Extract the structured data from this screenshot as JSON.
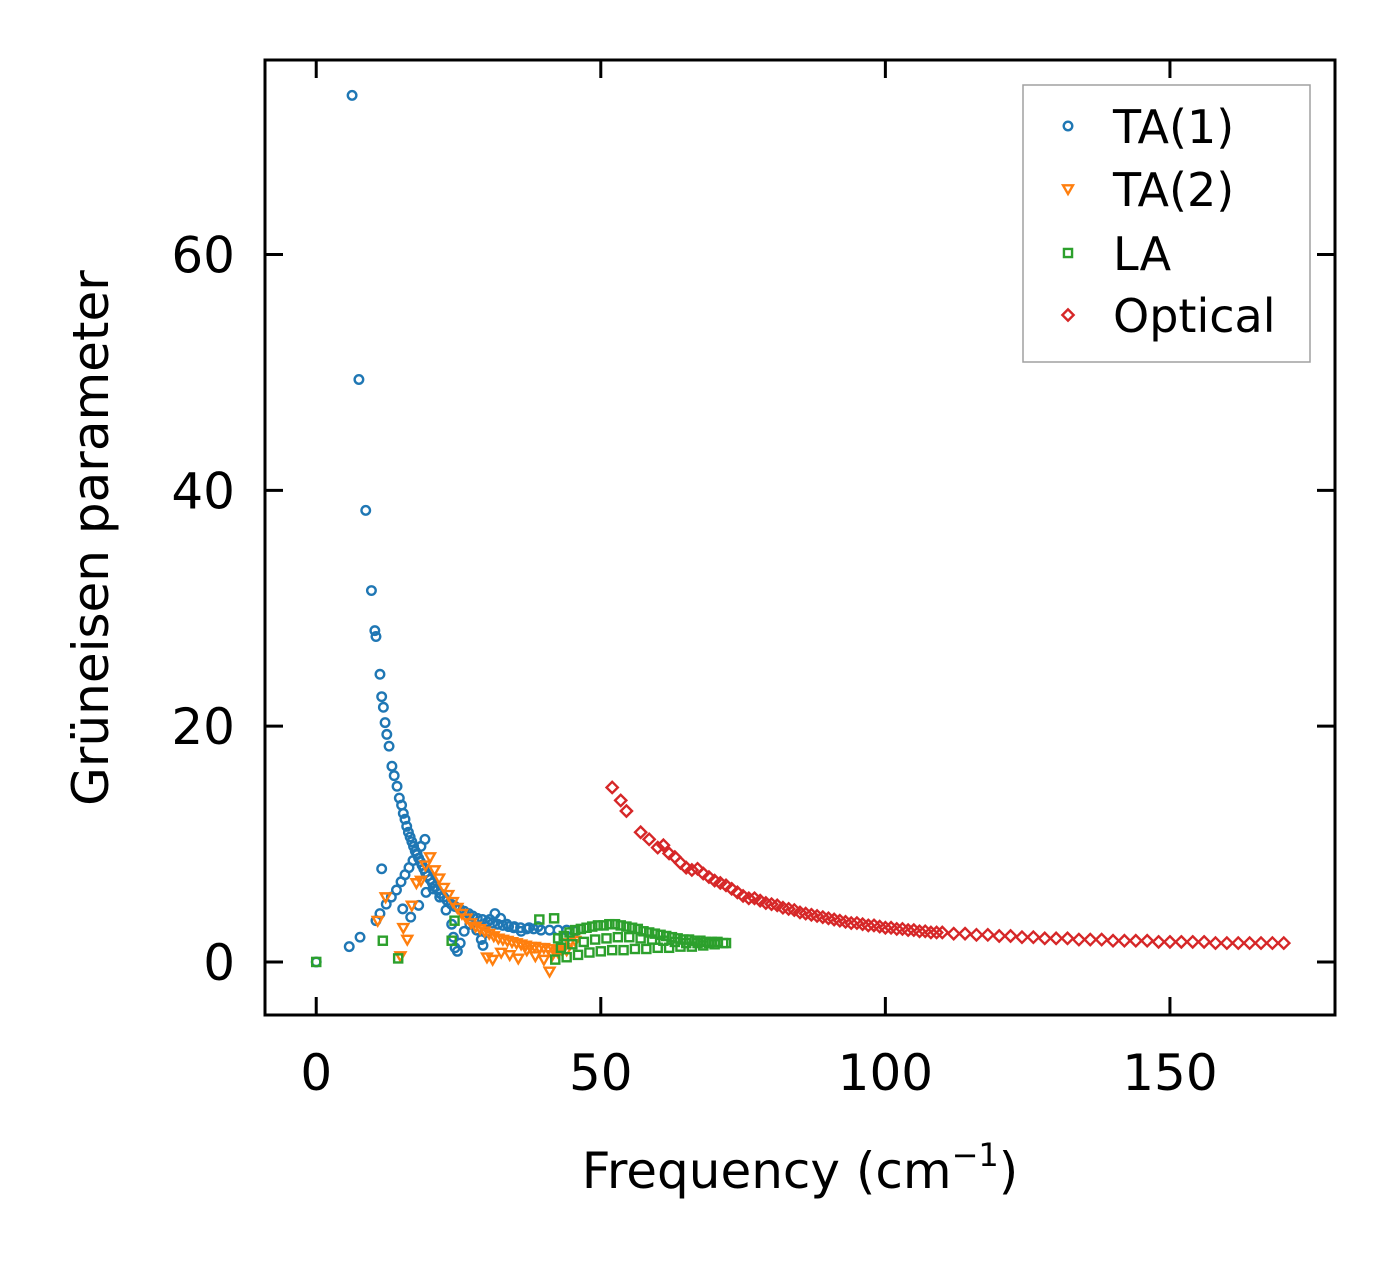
{
  "chart_data": {
    "type": "scatter",
    "title": "",
    "xlabel": "Frequency (cm",
    "xlabel_sup": "−1",
    "xlabel_close": ")",
    "ylabel": "Grüneisen parameter",
    "xlim": [
      -9,
      179
    ],
    "ylim": [
      -4.5,
      76.5
    ],
    "xticks": [
      0,
      50,
      100,
      150
    ],
    "yticks": [
      0,
      20,
      40,
      60
    ],
    "grid": false,
    "legend_position": "top-right",
    "series": [
      {
        "name": "TA(1)",
        "marker": "circle",
        "color": "#1f77b4",
        "x": [
          0,
          5.8,
          6.3,
          7.5,
          7.7,
          8.7,
          9.7,
          10.3,
          10.5,
          11.2,
          11.5,
          11.8,
          12.1,
          12.4,
          12.8,
          13.3,
          13.7,
          14.2,
          14.6,
          15.0,
          15.3,
          15.6,
          15.9,
          16.2,
          16.5,
          16.8,
          17.1,
          17.4,
          17.7,
          18.0,
          18.3,
          18.6,
          18.9,
          19.2,
          19.6,
          20.0,
          20.4,
          20.8,
          21.3,
          21.8,
          22.4,
          23.0,
          23.7,
          24.4,
          25.2,
          26.0,
          26.8,
          27.5,
          28.3,
          29.2,
          30.1,
          31.0,
          31.9,
          32.8,
          33.8,
          34.8,
          35.9,
          37.0,
          38.2,
          39.5,
          41.0,
          42.5,
          44.0,
          45.5,
          10.5,
          11.2,
          12.3,
          13.2,
          14.1,
          14.9,
          15.6,
          16.3,
          17.0,
          17.7,
          18.4,
          19.1,
          11.5,
          15.2,
          16.6,
          18.0,
          19.3,
          20.5,
          21.7,
          22.8,
          23.8,
          24.1,
          24.4,
          24.8,
          25.3,
          26.0,
          27.0,
          28.2,
          29.0,
          29.3,
          29.8,
          30.5,
          31.4,
          32.4,
          33.5,
          34.7,
          36.0,
          37.4,
          39.0
        ],
        "y": [
          0,
          1.3,
          73.5,
          49.4,
          2.1,
          38.3,
          31.5,
          28.1,
          27.6,
          24.4,
          22.5,
          21.6,
          20.3,
          19.3,
          18.3,
          16.6,
          15.8,
          14.9,
          13.9,
          13.3,
          12.6,
          12.1,
          11.5,
          11.0,
          10.6,
          10.2,
          9.8,
          9.4,
          9.1,
          8.8,
          8.5,
          8.2,
          7.9,
          7.6,
          7.3,
          7.0,
          6.7,
          6.4,
          6.1,
          5.8,
          5.5,
          5.2,
          4.9,
          4.7,
          4.5,
          4.3,
          4.1,
          3.9,
          3.7,
          3.6,
          3.4,
          3.3,
          3.2,
          3.1,
          3.0,
          3.0,
          2.9,
          2.8,
          2.8,
          2.7,
          2.7,
          2.7,
          2.7,
          2.6,
          3.5,
          4.1,
          4.9,
          5.5,
          6.1,
          6.8,
          7.4,
          8.0,
          8.6,
          9.2,
          9.8,
          10.4,
          7.9,
          4.5,
          3.8,
          4.8,
          5.9,
          6.2,
          5.5,
          4.4,
          3.2,
          2.1,
          1.2,
          0.9,
          1.6,
          2.6,
          3.2,
          2.7,
          1.9,
          1.4,
          2.5,
          3.6,
          4.1,
          3.7,
          3.2,
          2.9,
          2.6,
          2.9,
          3.0
        ]
      },
      {
        "name": "TA(2)",
        "marker": "triangle-down",
        "color": "#ff7f0e",
        "x": [
          10.8,
          12.2,
          14.8,
          15.3,
          16.0,
          16.8,
          17.6,
          18.4,
          19.2,
          20.0,
          20.8,
          21.6,
          22.4,
          23.2,
          24.0,
          24.8,
          25.6,
          26.4,
          27.2,
          28.0,
          28.8,
          29.6,
          30.4,
          31.2,
          32.0,
          32.8,
          33.6,
          34.4,
          35.2,
          36.0,
          36.8,
          37.6,
          38.4,
          39.2,
          40.0,
          40.8,
          41.6,
          42.4,
          43.2,
          44.0,
          30.0,
          31.0,
          32.5,
          34.0,
          35.5,
          37.0,
          38.5,
          40.0,
          41.0,
          41.5,
          42.5,
          43.5,
          44.5,
          45.5
        ],
        "y": [
          3.5,
          5.5,
          0.5,
          2.9,
          1.9,
          4.8,
          6.7,
          6.9,
          8.2,
          8.9,
          7.8,
          7.1,
          6.3,
          5.7,
          5.1,
          4.6,
          4.1,
          3.7,
          3.3,
          3.0,
          2.8,
          2.6,
          2.4,
          2.2,
          2.0,
          1.9,
          1.8,
          1.7,
          1.6,
          1.5,
          1.4,
          1.3,
          1.3,
          1.2,
          1.2,
          1.1,
          1.1,
          1.0,
          1.0,
          1.0,
          0.4,
          0.2,
          0.8,
          0.6,
          0.3,
          1.0,
          0.5,
          0.2,
          -0.8,
          0.6,
          0.8,
          1.2,
          1.6,
          1.8
        ]
      },
      {
        "name": "LA",
        "marker": "square",
        "color": "#2ca02c",
        "x": [
          0,
          11.7,
          14.4,
          23.8,
          24.3,
          39.2,
          41.8,
          42.5,
          43.5,
          44.5,
          45.5,
          46.5,
          47.5,
          48.5,
          49.5,
          50.5,
          51.5,
          52.5,
          53.5,
          54.5,
          55.5,
          56.5,
          57.5,
          58.5,
          59.5,
          60.5,
          61.5,
          62.5,
          63.5,
          64.5,
          65.5,
          66.5,
          67.5,
          68.5,
          69.5,
          70.5,
          71.5,
          42.0,
          44.0,
          46.0,
          48.0,
          50.0,
          52.0,
          54.0,
          56.0,
          58.0,
          60.0,
          62.0,
          64.0,
          66.0,
          68.0,
          70.0,
          72.0,
          43.0,
          45.0,
          47.0,
          49.0,
          51.0,
          53.0,
          55.0,
          57.0,
          59.0,
          61.0,
          63.0,
          65.0,
          67.0,
          69.0
        ],
        "y": [
          0,
          1.8,
          0.3,
          1.8,
          3.5,
          3.6,
          3.7,
          2.0,
          2.2,
          2.5,
          2.7,
          2.8,
          2.9,
          3.0,
          3.1,
          3.1,
          3.2,
          3.2,
          3.1,
          3.0,
          2.9,
          2.8,
          2.6,
          2.5,
          2.4,
          2.3,
          2.2,
          2.1,
          2.0,
          1.9,
          1.9,
          1.8,
          1.8,
          1.7,
          1.7,
          1.7,
          1.6,
          0.2,
          0.4,
          0.6,
          0.8,
          0.9,
          1.0,
          1.0,
          1.1,
          1.1,
          1.2,
          1.2,
          1.3,
          1.3,
          1.4,
          1.5,
          1.6,
          1.2,
          1.5,
          1.7,
          1.9,
          2.0,
          2.1,
          2.1,
          2.0,
          1.9,
          1.8,
          1.7,
          1.6,
          1.6,
          1.6
        ]
      },
      {
        "name": "Optical",
        "marker": "diamond",
        "color": "#d62728",
        "x": [
          52,
          53.5,
          54.5,
          57,
          58.5,
          60,
          61,
          62,
          63,
          64,
          65,
          66,
          67,
          68,
          69,
          70,
          71,
          72,
          73,
          74,
          75,
          76,
          77,
          78,
          79,
          80,
          81,
          82,
          83,
          84,
          85,
          86,
          87,
          88,
          89,
          90,
          91,
          92,
          93,
          94,
          95,
          96,
          97,
          98,
          99,
          100,
          101,
          102,
          103,
          104,
          105,
          106,
          107,
          108,
          109,
          110,
          112,
          114,
          116,
          118,
          120,
          122,
          124,
          126,
          128,
          130,
          132,
          134,
          136,
          138,
          140,
          142,
          144,
          146,
          148,
          150,
          152,
          154,
          156,
          158,
          160,
          162,
          164,
          166,
          168,
          170
        ],
        "y": [
          14.8,
          13.7,
          12.8,
          11.0,
          10.4,
          9.7,
          9.9,
          9.2,
          8.9,
          8.4,
          8.0,
          7.8,
          7.9,
          7.5,
          7.2,
          6.9,
          6.7,
          6.5,
          6.2,
          5.9,
          5.6,
          5.4,
          5.4,
          5.2,
          5.0,
          4.9,
          4.8,
          4.6,
          4.5,
          4.4,
          4.2,
          4.1,
          4.0,
          3.9,
          3.8,
          3.7,
          3.6,
          3.5,
          3.4,
          3.3,
          3.3,
          3.2,
          3.1,
          3.1,
          3.0,
          2.9,
          2.9,
          2.8,
          2.8,
          2.7,
          2.7,
          2.6,
          2.6,
          2.5,
          2.5,
          2.5,
          2.4,
          2.4,
          2.3,
          2.3,
          2.2,
          2.2,
          2.1,
          2.1,
          2.0,
          2.0,
          2.0,
          1.9,
          1.9,
          1.9,
          1.8,
          1.8,
          1.8,
          1.8,
          1.7,
          1.7,
          1.7,
          1.7,
          1.7,
          1.6,
          1.6,
          1.6,
          1.6,
          1.6,
          1.6,
          1.6
        ]
      }
    ]
  }
}
